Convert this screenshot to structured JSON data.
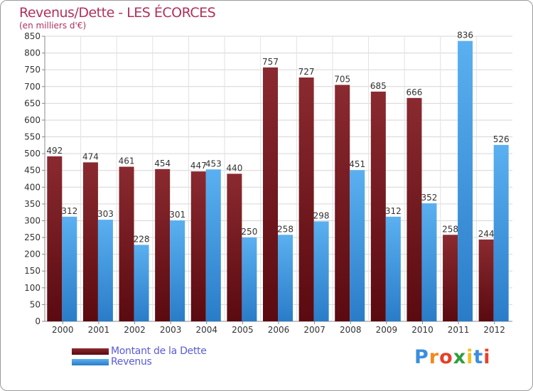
{
  "header": {
    "title": "Revenus/Dette - LES ÉCORCES",
    "subtitle": "(en milliers d'€)"
  },
  "chart_data": {
    "type": "bar",
    "title": "Revenus/Dette - LES ÉCORCES",
    "ylabel": "(en milliers d'€)",
    "ylim": [
      0,
      850
    ],
    "y_ticks": [
      "0",
      "50",
      "100",
      "150",
      "200",
      "250",
      "300",
      "350",
      "400",
      "450",
      "500",
      "550",
      "600",
      "650",
      "700",
      "750",
      "800",
      "850"
    ],
    "categories": [
      "2000",
      "2001",
      "2002",
      "2003",
      "2004",
      "2005",
      "2006",
      "2007",
      "2008",
      "2009",
      "2010",
      "2011",
      "2012"
    ],
    "series": [
      {
        "name": "Montant de la Dette",
        "color": "#7a1c20",
        "values": [
          492,
          474,
          461,
          454,
          447,
          440,
          757,
          727,
          705,
          685,
          666,
          258,
          244
        ]
      },
      {
        "name": "Revenus",
        "color": "#4a9fe0",
        "values": [
          312,
          303,
          228,
          301,
          453,
          250,
          258,
          298,
          451,
          312,
          352,
          836,
          526
        ]
      }
    ],
    "grid": true,
    "legend": "bottom-left"
  },
  "legend": {
    "items": [
      {
        "label": "Montant de la Dette",
        "color": "#7a1c20"
      },
      {
        "label": "Revenus",
        "color": "#4a9fe0"
      }
    ]
  },
  "logo": {
    "letters": [
      "P",
      "r",
      "o",
      "x",
      "i",
      "t",
      "i"
    ],
    "colors": [
      "#3a8ee0",
      "#f08a1c",
      "#e8402a",
      "#2e9e3e",
      "#f0c020",
      "#3a8ee0",
      "#e8402a"
    ]
  }
}
